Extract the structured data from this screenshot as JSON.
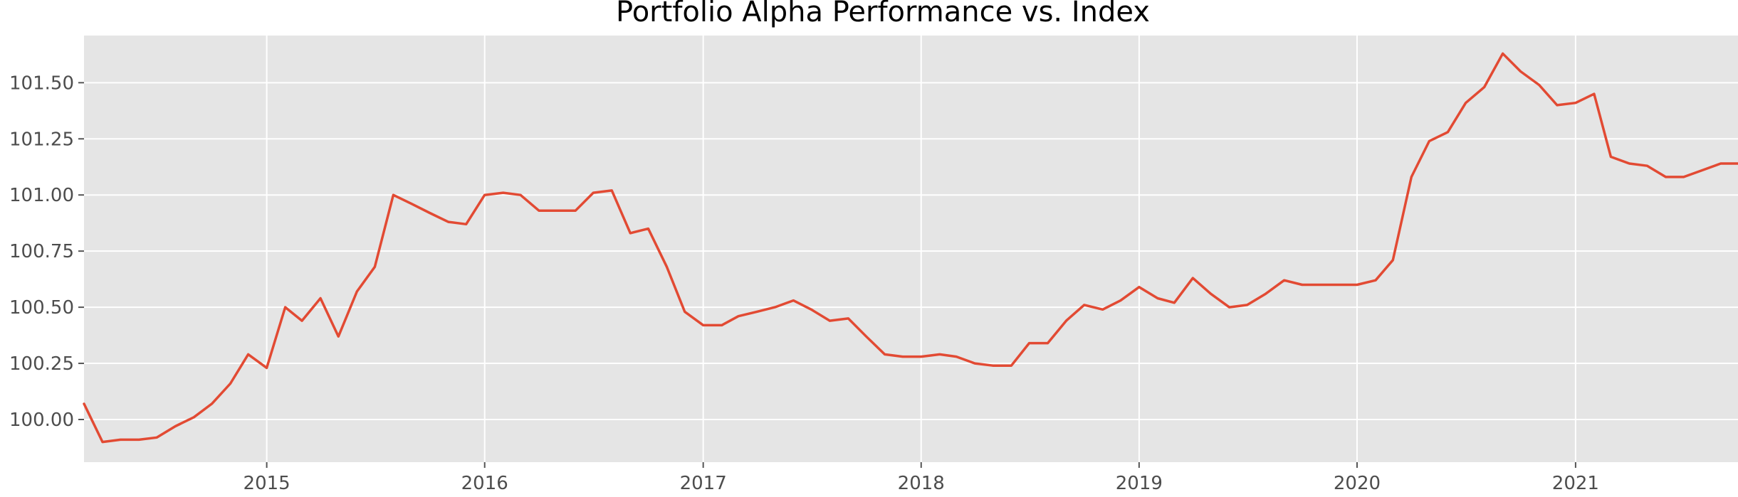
{
  "chart_data": {
    "type": "line",
    "title": "Portfolio Alpha Performance vs. Index",
    "xlabel": "",
    "ylabel": "",
    "xlim": [
      "2014-03-01",
      "2021-09-30"
    ],
    "ylim": [
      99.81,
      101.71
    ],
    "x_ticks": [
      {
        "label": "2015",
        "date": "2015-01-01"
      },
      {
        "label": "2016",
        "date": "2016-01-01"
      },
      {
        "label": "2017",
        "date": "2017-01-01"
      },
      {
        "label": "2018",
        "date": "2018-01-01"
      },
      {
        "label": "2019",
        "date": "2019-01-01"
      },
      {
        "label": "2020",
        "date": "2020-01-01"
      },
      {
        "label": "2021",
        "date": "2021-01-01"
      }
    ],
    "y_ticks": [
      {
        "label": "100.00",
        "value": 100.0
      },
      {
        "label": "100.25",
        "value": 100.25
      },
      {
        "label": "100.50",
        "value": 100.5
      },
      {
        "label": "100.75",
        "value": 100.75
      },
      {
        "label": "101.00",
        "value": 101.0
      },
      {
        "label": "101.25",
        "value": 101.25
      },
      {
        "label": "101.50",
        "value": 101.5
      }
    ],
    "grid": true,
    "colors": {
      "background": "#e5e5e5",
      "grid": "#ffffff",
      "line": "#e24a33"
    },
    "series": [
      {
        "x": [
          "2014-03-01",
          "2014-04-01",
          "2014-05-01",
          "2014-06-01",
          "2014-07-01",
          "2014-08-01",
          "2014-09-01",
          "2014-10-01",
          "2014-11-01",
          "2014-12-01",
          "2015-01-01",
          "2015-02-01",
          "2015-03-01",
          "2015-04-01",
          "2015-05-01",
          "2015-06-01",
          "2015-07-01",
          "2015-08-01",
          "2015-09-01",
          "2015-10-01",
          "2015-11-01",
          "2015-12-01",
          "2016-01-01",
          "2016-02-01",
          "2016-03-01",
          "2016-04-01",
          "2016-05-01",
          "2016-06-01",
          "2016-07-01",
          "2016-08-01",
          "2016-09-01",
          "2016-10-01",
          "2016-11-01",
          "2016-12-01",
          "2017-01-01",
          "2017-02-01",
          "2017-03-01",
          "2017-04-01",
          "2017-05-01",
          "2017-06-01",
          "2017-07-01",
          "2017-08-01",
          "2017-09-01",
          "2017-10-01",
          "2017-11-01",
          "2017-12-01",
          "2018-01-01",
          "2018-02-01",
          "2018-03-01",
          "2018-04-01",
          "2018-05-01",
          "2018-06-01",
          "2018-07-01",
          "2018-08-01",
          "2018-09-01",
          "2018-10-01",
          "2018-11-01",
          "2018-12-01",
          "2019-01-01",
          "2019-02-01",
          "2019-03-01",
          "2019-04-01",
          "2019-05-01",
          "2019-06-01",
          "2019-07-01",
          "2019-08-01",
          "2019-09-01",
          "2019-10-01",
          "2019-11-01",
          "2019-12-01",
          "2020-01-01",
          "2020-02-01",
          "2020-03-01",
          "2020-04-01",
          "2020-05-01",
          "2020-06-01",
          "2020-07-01",
          "2020-08-01",
          "2020-09-01",
          "2020-10-01",
          "2020-11-01",
          "2020-12-01",
          "2021-01-01",
          "2021-02-01",
          "2021-03-01",
          "2021-04-01",
          "2021-05-01",
          "2021-06-01",
          "2021-07-01",
          "2021-08-01",
          "2021-09-01",
          "2021-09-30"
        ],
        "values": [
          100.07,
          99.9,
          99.91,
          99.91,
          99.92,
          99.97,
          100.01,
          100.07,
          100.16,
          100.29,
          100.23,
          100.5,
          100.44,
          100.54,
          100.37,
          100.57,
          100.68,
          101.0,
          100.96,
          100.92,
          100.88,
          100.87,
          101.0,
          101.01,
          101.0,
          100.93,
          100.93,
          100.93,
          101.01,
          101.02,
          100.83,
          100.85,
          100.68,
          100.48,
          100.42,
          100.42,
          100.46,
          100.48,
          100.5,
          100.53,
          100.49,
          100.44,
          100.45,
          100.37,
          100.29,
          100.28,
          100.28,
          100.29,
          100.28,
          100.25,
          100.24,
          100.24,
          100.34,
          100.34,
          100.44,
          100.51,
          100.49,
          100.53,
          100.59,
          100.54,
          100.52,
          100.63,
          100.56,
          100.5,
          100.51,
          100.56,
          100.62,
          100.6,
          100.6,
          100.6,
          100.6,
          100.62,
          100.71,
          101.08,
          101.24,
          101.28,
          101.41,
          101.48,
          101.63,
          101.55,
          101.49,
          101.4,
          101.41,
          101.45,
          101.17,
          101.14,
          101.13,
          101.08,
          101.08,
          101.11,
          101.14,
          101.14
        ]
      }
    ]
  }
}
